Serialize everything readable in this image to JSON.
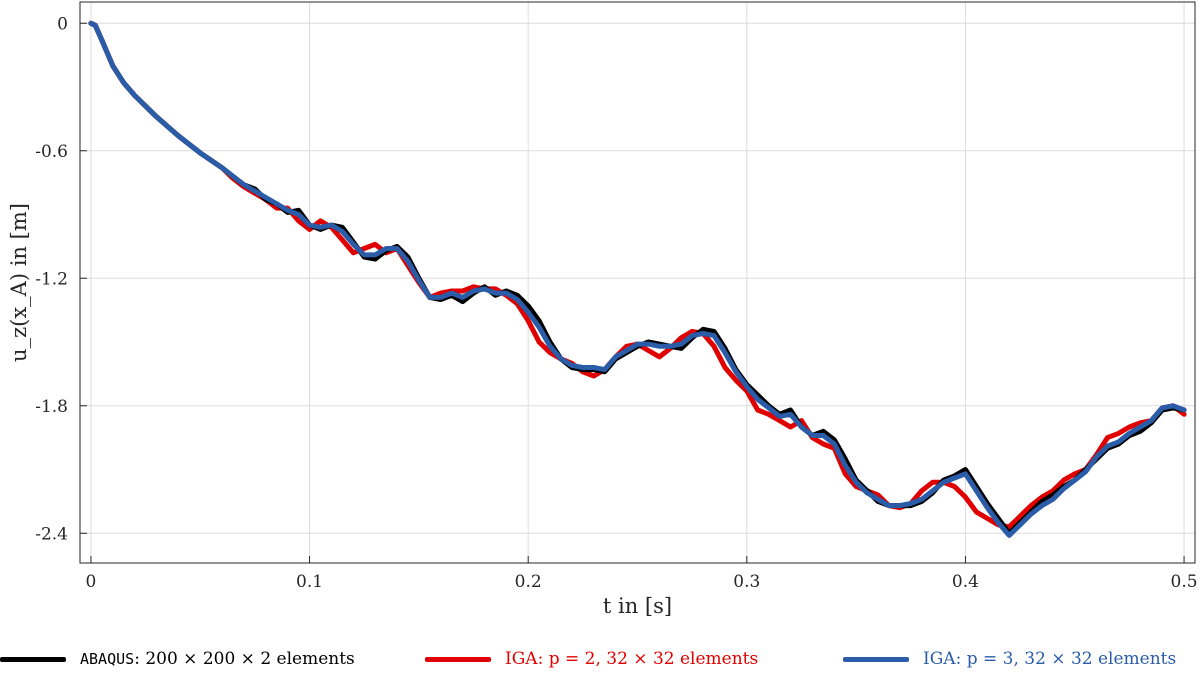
{
  "chart_data": {
    "type": "line",
    "title": "",
    "xlabel": "t in [s]",
    "ylabel": "u_z(x_A) in [m]",
    "xlim": [
      -0.005,
      0.505
    ],
    "ylim": [
      -2.54,
      0.1
    ],
    "xticks": [
      0,
      0.1,
      0.2,
      0.3,
      0.4,
      0.5
    ],
    "xtick_labels": [
      "0",
      "0.1",
      "0.2",
      "0.3",
      "0.4",
      "0.5"
    ],
    "yticks": [
      0,
      -0.6,
      -1.2,
      -1.8,
      -2.4
    ],
    "ytick_labels": [
      "0",
      "-0.6",
      "-1.2",
      "-1.8",
      "-2.4"
    ],
    "grid": true,
    "legend_position": "bottom",
    "series": [
      {
        "name": "ABAQUS: 200 × 200 × 2 elements",
        "color": "#000000",
        "points": [
          [
            0,
            0
          ],
          [
            0.002,
            -0.01
          ],
          [
            0.005,
            -0.08
          ],
          [
            0.01,
            -0.2
          ],
          [
            0.015,
            -0.28
          ],
          [
            0.02,
            -0.34
          ],
          [
            0.03,
            -0.44
          ],
          [
            0.04,
            -0.53
          ],
          [
            0.05,
            -0.61
          ],
          [
            0.06,
            -0.68
          ],
          [
            0.065,
            -0.72
          ],
          [
            0.07,
            -0.76
          ],
          [
            0.075,
            -0.78
          ],
          [
            0.08,
            -0.83
          ],
          [
            0.085,
            -0.85
          ],
          [
            0.09,
            -0.89
          ],
          [
            0.095,
            -0.88
          ],
          [
            0.1,
            -0.95
          ],
          [
            0.105,
            -0.97
          ],
          [
            0.11,
            -0.95
          ],
          [
            0.115,
            -0.96
          ],
          [
            0.12,
            -1.03
          ],
          [
            0.125,
            -1.1
          ],
          [
            0.13,
            -1.11
          ],
          [
            0.135,
            -1.07
          ],
          [
            0.14,
            -1.05
          ],
          [
            0.145,
            -1.1
          ],
          [
            0.15,
            -1.2
          ],
          [
            0.155,
            -1.29
          ],
          [
            0.16,
            -1.3
          ],
          [
            0.165,
            -1.28
          ],
          [
            0.17,
            -1.31
          ],
          [
            0.175,
            -1.27
          ],
          [
            0.18,
            -1.24
          ],
          [
            0.185,
            -1.28
          ],
          [
            0.19,
            -1.26
          ],
          [
            0.195,
            -1.28
          ],
          [
            0.2,
            -1.33
          ],
          [
            0.205,
            -1.4
          ],
          [
            0.21,
            -1.5
          ],
          [
            0.215,
            -1.58
          ],
          [
            0.22,
            -1.62
          ],
          [
            0.225,
            -1.63
          ],
          [
            0.23,
            -1.63
          ],
          [
            0.235,
            -1.64
          ],
          [
            0.24,
            -1.58
          ],
          [
            0.245,
            -1.55
          ],
          [
            0.25,
            -1.52
          ],
          [
            0.255,
            -1.5
          ],
          [
            0.26,
            -1.51
          ],
          [
            0.265,
            -1.52
          ],
          [
            0.27,
            -1.53
          ],
          [
            0.275,
            -1.48
          ],
          [
            0.28,
            -1.44
          ],
          [
            0.285,
            -1.45
          ],
          [
            0.29,
            -1.53
          ],
          [
            0.295,
            -1.63
          ],
          [
            0.3,
            -1.7
          ],
          [
            0.305,
            -1.75
          ],
          [
            0.31,
            -1.8
          ],
          [
            0.315,
            -1.84
          ],
          [
            0.32,
            -1.82
          ],
          [
            0.325,
            -1.9
          ],
          [
            0.33,
            -1.94
          ],
          [
            0.335,
            -1.92
          ],
          [
            0.34,
            -1.96
          ],
          [
            0.345,
            -2.05
          ],
          [
            0.35,
            -2.15
          ],
          [
            0.355,
            -2.2
          ],
          [
            0.36,
            -2.25
          ],
          [
            0.365,
            -2.27
          ],
          [
            0.37,
            -2.27
          ],
          [
            0.375,
            -2.27
          ],
          [
            0.38,
            -2.25
          ],
          [
            0.385,
            -2.21
          ],
          [
            0.39,
            -2.15
          ],
          [
            0.395,
            -2.13
          ],
          [
            0.4,
            -2.1
          ],
          [
            0.405,
            -2.18
          ],
          [
            0.41,
            -2.26
          ],
          [
            0.415,
            -2.33
          ],
          [
            0.42,
            -2.4
          ],
          [
            0.425,
            -2.35
          ],
          [
            0.43,
            -2.3
          ],
          [
            0.435,
            -2.25
          ],
          [
            0.44,
            -2.22
          ],
          [
            0.445,
            -2.18
          ],
          [
            0.45,
            -2.15
          ],
          [
            0.455,
            -2.1
          ],
          [
            0.46,
            -2.05
          ],
          [
            0.465,
            -2.0
          ],
          [
            0.47,
            -1.98
          ],
          [
            0.475,
            -1.94
          ],
          [
            0.48,
            -1.92
          ],
          [
            0.485,
            -1.88
          ],
          [
            0.49,
            -1.82
          ],
          [
            0.495,
            -1.81
          ],
          [
            0.5,
            -1.82
          ]
        ]
      },
      {
        "name": "IGA: p = 2, 32 × 32 elements",
        "color": "#e00000",
        "points": [
          [
            0,
            0
          ],
          [
            0.002,
            -0.01
          ],
          [
            0.005,
            -0.08
          ],
          [
            0.01,
            -0.2
          ],
          [
            0.015,
            -0.28
          ],
          [
            0.02,
            -0.34
          ],
          [
            0.03,
            -0.44
          ],
          [
            0.04,
            -0.53
          ],
          [
            0.05,
            -0.61
          ],
          [
            0.06,
            -0.68
          ],
          [
            0.065,
            -0.73
          ],
          [
            0.07,
            -0.77
          ],
          [
            0.075,
            -0.8
          ],
          [
            0.08,
            -0.83
          ],
          [
            0.085,
            -0.87
          ],
          [
            0.09,
            -0.87
          ],
          [
            0.095,
            -0.93
          ],
          [
            0.1,
            -0.97
          ],
          [
            0.105,
            -0.93
          ],
          [
            0.11,
            -0.96
          ],
          [
            0.115,
            -1.02
          ],
          [
            0.12,
            -1.08
          ],
          [
            0.125,
            -1.06
          ],
          [
            0.13,
            -1.04
          ],
          [
            0.135,
            -1.08
          ],
          [
            0.14,
            -1.06
          ],
          [
            0.145,
            -1.14
          ],
          [
            0.15,
            -1.22
          ],
          [
            0.155,
            -1.29
          ],
          [
            0.16,
            -1.27
          ],
          [
            0.165,
            -1.26
          ],
          [
            0.17,
            -1.26
          ],
          [
            0.175,
            -1.24
          ],
          [
            0.18,
            -1.25
          ],
          [
            0.185,
            -1.25
          ],
          [
            0.19,
            -1.28
          ],
          [
            0.195,
            -1.32
          ],
          [
            0.2,
            -1.4
          ],
          [
            0.205,
            -1.5
          ],
          [
            0.21,
            -1.55
          ],
          [
            0.215,
            -1.58
          ],
          [
            0.22,
            -1.6
          ],
          [
            0.225,
            -1.64
          ],
          [
            0.23,
            -1.66
          ],
          [
            0.235,
            -1.63
          ],
          [
            0.24,
            -1.57
          ],
          [
            0.245,
            -1.52
          ],
          [
            0.25,
            -1.51
          ],
          [
            0.255,
            -1.54
          ],
          [
            0.26,
            -1.57
          ],
          [
            0.265,
            -1.53
          ],
          [
            0.27,
            -1.48
          ],
          [
            0.275,
            -1.45
          ],
          [
            0.28,
            -1.46
          ],
          [
            0.285,
            -1.52
          ],
          [
            0.29,
            -1.62
          ],
          [
            0.295,
            -1.68
          ],
          [
            0.3,
            -1.73
          ],
          [
            0.305,
            -1.82
          ],
          [
            0.31,
            -1.84
          ],
          [
            0.315,
            -1.87
          ],
          [
            0.32,
            -1.9
          ],
          [
            0.325,
            -1.87
          ],
          [
            0.33,
            -1.95
          ],
          [
            0.335,
            -1.98
          ],
          [
            0.34,
            -2.0
          ],
          [
            0.345,
            -2.12
          ],
          [
            0.35,
            -2.18
          ],
          [
            0.355,
            -2.2
          ],
          [
            0.36,
            -2.22
          ],
          [
            0.365,
            -2.27
          ],
          [
            0.37,
            -2.28
          ],
          [
            0.375,
            -2.26
          ],
          [
            0.38,
            -2.2
          ],
          [
            0.385,
            -2.16
          ],
          [
            0.39,
            -2.16
          ],
          [
            0.395,
            -2.18
          ],
          [
            0.4,
            -2.23
          ],
          [
            0.405,
            -2.3
          ],
          [
            0.41,
            -2.33
          ],
          [
            0.415,
            -2.36
          ],
          [
            0.42,
            -2.37
          ],
          [
            0.425,
            -2.32
          ],
          [
            0.43,
            -2.27
          ],
          [
            0.435,
            -2.23
          ],
          [
            0.44,
            -2.2
          ],
          [
            0.445,
            -2.15
          ],
          [
            0.45,
            -2.12
          ],
          [
            0.455,
            -2.1
          ],
          [
            0.46,
            -2.03
          ],
          [
            0.465,
            -1.95
          ],
          [
            0.47,
            -1.93
          ],
          [
            0.475,
            -1.9
          ],
          [
            0.48,
            -1.88
          ],
          [
            0.485,
            -1.87
          ],
          [
            0.49,
            -1.81
          ],
          [
            0.495,
            -1.8
          ],
          [
            0.5,
            -1.84
          ]
        ]
      },
      {
        "name": "IGA: p = 3, 32 × 32 elements",
        "color": "#2a5ca8",
        "points": [
          [
            0,
            0
          ],
          [
            0.002,
            -0.01
          ],
          [
            0.005,
            -0.08
          ],
          [
            0.01,
            -0.2
          ],
          [
            0.015,
            -0.28
          ],
          [
            0.02,
            -0.34
          ],
          [
            0.03,
            -0.44
          ],
          [
            0.04,
            -0.53
          ],
          [
            0.05,
            -0.61
          ],
          [
            0.06,
            -0.68
          ],
          [
            0.065,
            -0.72
          ],
          [
            0.07,
            -0.76
          ],
          [
            0.075,
            -0.79
          ],
          [
            0.08,
            -0.82
          ],
          [
            0.085,
            -0.85
          ],
          [
            0.09,
            -0.88
          ],
          [
            0.095,
            -0.9
          ],
          [
            0.1,
            -0.95
          ],
          [
            0.105,
            -0.96
          ],
          [
            0.11,
            -0.95
          ],
          [
            0.115,
            -0.98
          ],
          [
            0.12,
            -1.04
          ],
          [
            0.125,
            -1.09
          ],
          [
            0.13,
            -1.09
          ],
          [
            0.135,
            -1.06
          ],
          [
            0.14,
            -1.06
          ],
          [
            0.145,
            -1.12
          ],
          [
            0.15,
            -1.21
          ],
          [
            0.155,
            -1.29
          ],
          [
            0.16,
            -1.29
          ],
          [
            0.165,
            -1.27
          ],
          [
            0.17,
            -1.29
          ],
          [
            0.175,
            -1.26
          ],
          [
            0.18,
            -1.25
          ],
          [
            0.185,
            -1.27
          ],
          [
            0.19,
            -1.27
          ],
          [
            0.195,
            -1.3
          ],
          [
            0.2,
            -1.36
          ],
          [
            0.205,
            -1.43
          ],
          [
            0.21,
            -1.52
          ],
          [
            0.215,
            -1.58
          ],
          [
            0.22,
            -1.61
          ],
          [
            0.225,
            -1.62
          ],
          [
            0.23,
            -1.62
          ],
          [
            0.235,
            -1.63
          ],
          [
            0.24,
            -1.57
          ],
          [
            0.245,
            -1.54
          ],
          [
            0.25,
            -1.51
          ],
          [
            0.255,
            -1.51
          ],
          [
            0.26,
            -1.52
          ],
          [
            0.265,
            -1.52
          ],
          [
            0.27,
            -1.51
          ],
          [
            0.275,
            -1.47
          ],
          [
            0.28,
            -1.46
          ],
          [
            0.285,
            -1.47
          ],
          [
            0.29,
            -1.55
          ],
          [
            0.295,
            -1.64
          ],
          [
            0.3,
            -1.71
          ],
          [
            0.305,
            -1.77
          ],
          [
            0.31,
            -1.81
          ],
          [
            0.315,
            -1.85
          ],
          [
            0.32,
            -1.84
          ],
          [
            0.325,
            -1.9
          ],
          [
            0.33,
            -1.94
          ],
          [
            0.335,
            -1.94
          ],
          [
            0.34,
            -1.98
          ],
          [
            0.345,
            -2.08
          ],
          [
            0.35,
            -2.16
          ],
          [
            0.355,
            -2.21
          ],
          [
            0.36,
            -2.24
          ],
          [
            0.365,
            -2.27
          ],
          [
            0.37,
            -2.27
          ],
          [
            0.375,
            -2.26
          ],
          [
            0.38,
            -2.24
          ],
          [
            0.385,
            -2.2
          ],
          [
            0.39,
            -2.16
          ],
          [
            0.395,
            -2.14
          ],
          [
            0.4,
            -2.12
          ],
          [
            0.405,
            -2.2
          ],
          [
            0.41,
            -2.28
          ],
          [
            0.415,
            -2.35
          ],
          [
            0.42,
            -2.41
          ],
          [
            0.425,
            -2.36
          ],
          [
            0.43,
            -2.31
          ],
          [
            0.435,
            -2.27
          ],
          [
            0.44,
            -2.24
          ],
          [
            0.445,
            -2.19
          ],
          [
            0.45,
            -2.15
          ],
          [
            0.455,
            -2.11
          ],
          [
            0.46,
            -2.04
          ],
          [
            0.465,
            -1.99
          ],
          [
            0.47,
            -1.97
          ],
          [
            0.475,
            -1.93
          ],
          [
            0.48,
            -1.9
          ],
          [
            0.485,
            -1.87
          ],
          [
            0.49,
            -1.81
          ],
          [
            0.495,
            -1.8
          ],
          [
            0.5,
            -1.82
          ]
        ]
      }
    ]
  },
  "legend": {
    "item1_prefix": "ABAQUS",
    "item1_rest": ": 200 × 200 × 2 elements",
    "item2_text": "IGA: p = 2, 32 × 32 elements",
    "item3_text": "IGA: p = 3, 32 × 32 elements"
  }
}
